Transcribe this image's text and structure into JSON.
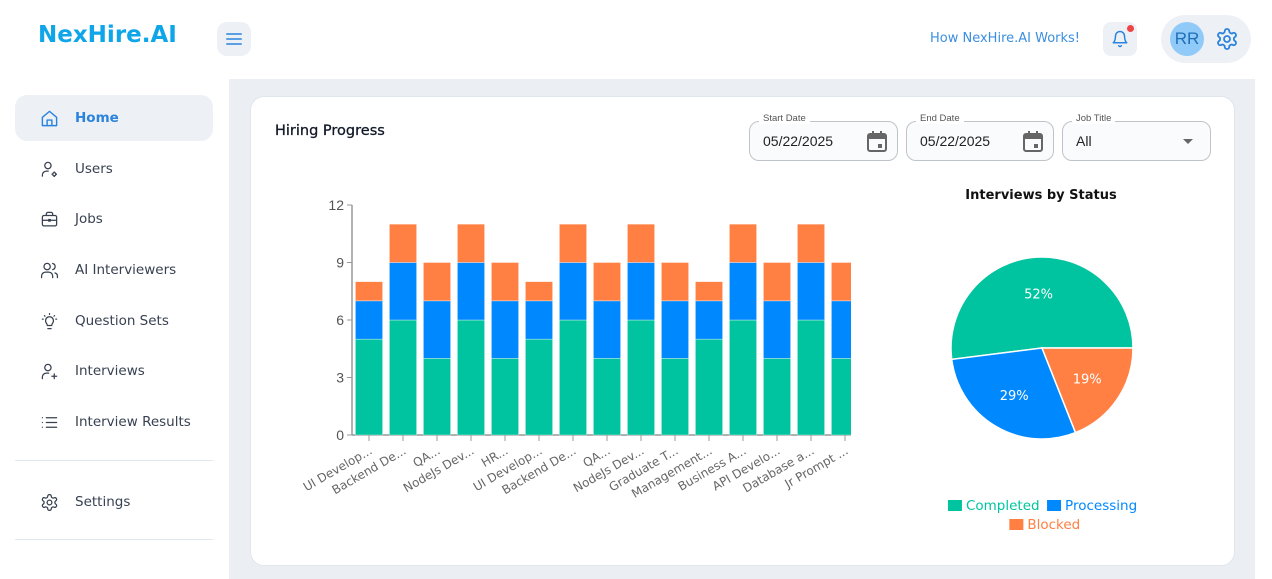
{
  "header": {
    "logo": "NexHire.AI",
    "how_link": "How NexHire.AI Works!",
    "avatar_initials": "RR",
    "has_notification": true
  },
  "sidebar": {
    "items": [
      {
        "label": "Home",
        "icon": "home-icon",
        "active": true
      },
      {
        "label": "Users",
        "icon": "user-settings-icon",
        "active": false
      },
      {
        "label": "Jobs",
        "icon": "briefcase-icon",
        "active": false
      },
      {
        "label": "AI Interviewers",
        "icon": "users-icon",
        "active": false
      },
      {
        "label": "Question Sets",
        "icon": "lightbulb-icon",
        "active": false
      },
      {
        "label": "Interviews",
        "icon": "user-plus-icon",
        "active": false
      },
      {
        "label": "Interview Results",
        "icon": "list-icon",
        "active": false
      }
    ],
    "settings": {
      "label": "Settings",
      "icon": "gear-icon"
    }
  },
  "card": {
    "title": "Hiring Progress",
    "filters": {
      "start_date": {
        "label": "Start Date",
        "value": "05/22/2025"
      },
      "end_date": {
        "label": "End Date",
        "value": "05/22/2025"
      },
      "job_title": {
        "label": "Job Title",
        "value": "All"
      }
    }
  },
  "colors": {
    "completed": "#00c49f",
    "processing": "#0088fe",
    "blocked": "#ff8042",
    "accent": "#2b83dd",
    "logo": "#0ea5e9"
  },
  "chart_data": [
    {
      "type": "bar",
      "stacked": true,
      "title": "",
      "xlabel": "",
      "ylabel": "",
      "ylim": [
        0,
        12
      ],
      "yticks": [
        0,
        3,
        6,
        9,
        12
      ],
      "categories": [
        "UI Develop...",
        "Backend De...",
        "QA...",
        "NodeJs Dev...",
        "HR...",
        "UI Develop...",
        "Backend De...",
        "QA...",
        "NodeJs Dev...",
        "Graduate T...",
        "Management...",
        "Business A...",
        "API Develo...",
        "Database a...",
        "Jr Prompt ..."
      ],
      "series": [
        {
          "name": "Completed",
          "color": "#00c49f",
          "values": [
            5,
            6,
            4,
            6,
            4,
            5,
            6,
            4,
            6,
            4,
            5,
            6,
            4,
            6,
            4
          ]
        },
        {
          "name": "Processing",
          "color": "#0088fe",
          "values": [
            2,
            3,
            3,
            3,
            3,
            2,
            3,
            3,
            3,
            3,
            2,
            3,
            3,
            3,
            3
          ]
        },
        {
          "name": "Blocked",
          "color": "#ff8042",
          "values": [
            1,
            2,
            2,
            2,
            2,
            1,
            2,
            2,
            2,
            2,
            1,
            2,
            2,
            2,
            2
          ]
        }
      ],
      "grid": false,
      "legend": "none"
    },
    {
      "type": "pie",
      "title": "Interviews by Status",
      "slices": [
        {
          "label": "Completed",
          "value": 52,
          "display": "52%",
          "color": "#00c49f"
        },
        {
          "label": "Processing",
          "value": 29,
          "display": "29%",
          "color": "#0088fe"
        },
        {
          "label": "Blocked",
          "value": 19,
          "display": "19%",
          "color": "#ff8042"
        }
      ],
      "legend": "bottom"
    }
  ]
}
